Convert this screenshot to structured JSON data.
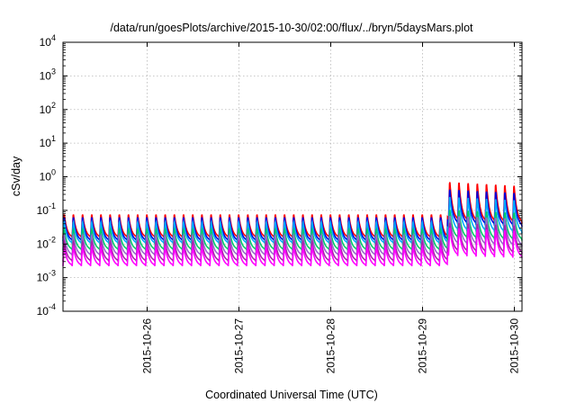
{
  "chart_data": {
    "type": "line",
    "title": "/data/run/goesPlots/archive/2015-10-30/02:00/flux/../bryn/5daysMars.plot",
    "xlabel": "Coordinated Universal Time (UTC)",
    "ylabel": "cSv/day",
    "yscale": "log",
    "xlim": [
      "2015-10-25T02:00",
      "2015-10-30T02:00"
    ],
    "ylim": [
      0.0001,
      10000
    ],
    "grid": true,
    "legend": "none",
    "x_ticks": [
      {
        "date": "2015-10-26T00:00",
        "label": "2015-10-26"
      },
      {
        "date": "2015-10-27T00:00",
        "label": "2015-10-27"
      },
      {
        "date": "2015-10-28T00:00",
        "label": "2015-10-28"
      },
      {
        "date": "2015-10-29T00:00",
        "label": "2015-10-29"
      },
      {
        "date": "2015-10-30T00:00",
        "label": "2015-10-30"
      }
    ],
    "y_ticks": [
      {
        "value": 0.0001,
        "mantissa": "10",
        "exp": "-4"
      },
      {
        "value": 0.001,
        "mantissa": "10",
        "exp": "-3"
      },
      {
        "value": 0.01,
        "mantissa": "10",
        "exp": "-2"
      },
      {
        "value": 0.1,
        "mantissa": "10",
        "exp": "-1"
      },
      {
        "value": 1,
        "mantissa": "10",
        "exp": "0"
      },
      {
        "value": 10,
        "mantissa": "10",
        "exp": "1"
      },
      {
        "value": 100,
        "mantissa": "10",
        "exp": "2"
      },
      {
        "value": 1000,
        "mantissa": "10",
        "exp": "3"
      },
      {
        "value": 10000,
        "mantissa": "10",
        "exp": "4"
      }
    ],
    "sawtooth": {
      "period_hours": 2.4,
      "event_start": "2015-10-29T06:30",
      "event_decay_hours": 60
    },
    "series": [
      {
        "color": "#ff0000",
        "peak": 0.085,
        "trough": 0.015,
        "event_peak": 0.85,
        "event_trough": 0.05
      },
      {
        "color": "#0000dd",
        "peak": 0.07,
        "trough": 0.012,
        "event_peak": 0.5,
        "event_trough": 0.04
      },
      {
        "color": "#00aaff",
        "peak": 0.05,
        "trough": 0.01,
        "event_peak": 0.3,
        "event_trough": 0.025
      },
      {
        "color": "#00cc66",
        "peak": 0.03,
        "trough": 0.0065,
        "event_peak": 0.12,
        "event_trough": 0.015
      },
      {
        "color": "#9966cc",
        "peak": 0.02,
        "trough": 0.0045,
        "event_peak": 0.08,
        "event_trough": 0.01
      },
      {
        "color": "#aa22aa",
        "peak": 0.013,
        "trough": 0.003,
        "event_peak": 0.05,
        "event_trough": 0.006
      },
      {
        "color": "#ff00ff",
        "peak": 0.009,
        "trough": 0.0022,
        "event_peak": 0.035,
        "event_trough": 0.0045
      }
    ]
  }
}
